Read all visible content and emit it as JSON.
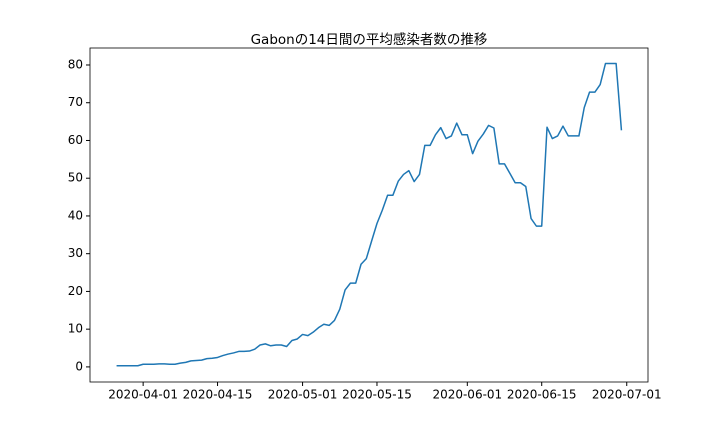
{
  "chart_data": {
    "type": "line",
    "title": "Gabonの14日間の平均感染者数の推移",
    "x": [
      "2020-03-27",
      "2020-03-28",
      "2020-03-29",
      "2020-03-30",
      "2020-03-31",
      "2020-04-01",
      "2020-04-02",
      "2020-04-03",
      "2020-04-04",
      "2020-04-05",
      "2020-04-06",
      "2020-04-07",
      "2020-04-08",
      "2020-04-09",
      "2020-04-10",
      "2020-04-11",
      "2020-04-12",
      "2020-04-13",
      "2020-04-14",
      "2020-04-15",
      "2020-04-16",
      "2020-04-17",
      "2020-04-18",
      "2020-04-19",
      "2020-04-20",
      "2020-04-21",
      "2020-04-22",
      "2020-04-23",
      "2020-04-24",
      "2020-04-25",
      "2020-04-26",
      "2020-04-27",
      "2020-04-28",
      "2020-04-29",
      "2020-04-30",
      "2020-05-01",
      "2020-05-02",
      "2020-05-03",
      "2020-05-04",
      "2020-05-05",
      "2020-05-06",
      "2020-05-07",
      "2020-05-08",
      "2020-05-09",
      "2020-05-10",
      "2020-05-11",
      "2020-05-12",
      "2020-05-13",
      "2020-05-14",
      "2020-05-15",
      "2020-05-16",
      "2020-05-17",
      "2020-05-18",
      "2020-05-19",
      "2020-05-20",
      "2020-05-21",
      "2020-05-22",
      "2020-05-23",
      "2020-05-24",
      "2020-05-25",
      "2020-05-26",
      "2020-05-27",
      "2020-05-28",
      "2020-05-29",
      "2020-05-30",
      "2020-05-31",
      "2020-06-01",
      "2020-06-02",
      "2020-06-03",
      "2020-06-04",
      "2020-06-05",
      "2020-06-06",
      "2020-06-07",
      "2020-06-08",
      "2020-06-09",
      "2020-06-10",
      "2020-06-11",
      "2020-06-12",
      "2020-06-13",
      "2020-06-14",
      "2020-06-15",
      "2020-06-16",
      "2020-06-17",
      "2020-06-18",
      "2020-06-19",
      "2020-06-20",
      "2020-06-21",
      "2020-06-22",
      "2020-06-23",
      "2020-06-24",
      "2020-06-25",
      "2020-06-26",
      "2020-06-27",
      "2020-06-28",
      "2020-06-29",
      "2020-06-30"
    ],
    "series": [
      {
        "name": "Gabon",
        "color": "#1f77b4",
        "values": [
          0.3,
          0.3,
          0.3,
          0.3,
          0.3,
          0.7,
          0.7,
          0.7,
          0.8,
          0.8,
          0.7,
          0.7,
          1.0,
          1.2,
          1.6,
          1.7,
          1.8,
          2.2,
          2.3,
          2.5,
          3.0,
          3.4,
          3.7,
          4.1,
          4.1,
          4.2,
          4.7,
          5.8,
          6.1,
          5.6,
          5.8,
          5.8,
          5.4,
          7.0,
          7.4,
          8.6,
          8.3,
          9.2,
          10.4,
          11.3,
          11.0,
          12.3,
          15.3,
          20.4,
          22.2,
          22.2,
          27.2,
          28.7,
          33.4,
          38,
          41.5,
          45.5,
          45.5,
          49.2,
          51,
          52,
          49.1,
          51,
          58.7,
          58.7,
          61.5,
          63.4,
          60.5,
          61.2,
          64.6,
          61.5,
          61.5,
          56.5,
          59.8,
          61.7,
          64,
          63.3,
          53.8,
          53.8,
          51.3,
          48.8,
          48.8,
          47.8,
          39.3,
          37.3,
          37.3,
          63.5,
          60.5,
          61.2,
          63.8,
          61.2,
          61.2,
          61.2,
          68.7,
          72.8,
          72.8,
          74.8,
          80.4,
          80.4,
          80.4,
          62.7
        ]
      }
    ],
    "xlim": [
      "2020-03-22",
      "2020-07-05"
    ],
    "xticks": [
      "2020-04-01",
      "2020-04-15",
      "2020-05-01",
      "2020-05-15",
      "2020-06-01",
      "2020-06-15",
      "2020-07-01"
    ],
    "ylim": [
      -4,
      84.5
    ],
    "yticks": [
      0,
      10,
      20,
      30,
      40,
      50,
      60,
      70,
      80
    ]
  }
}
